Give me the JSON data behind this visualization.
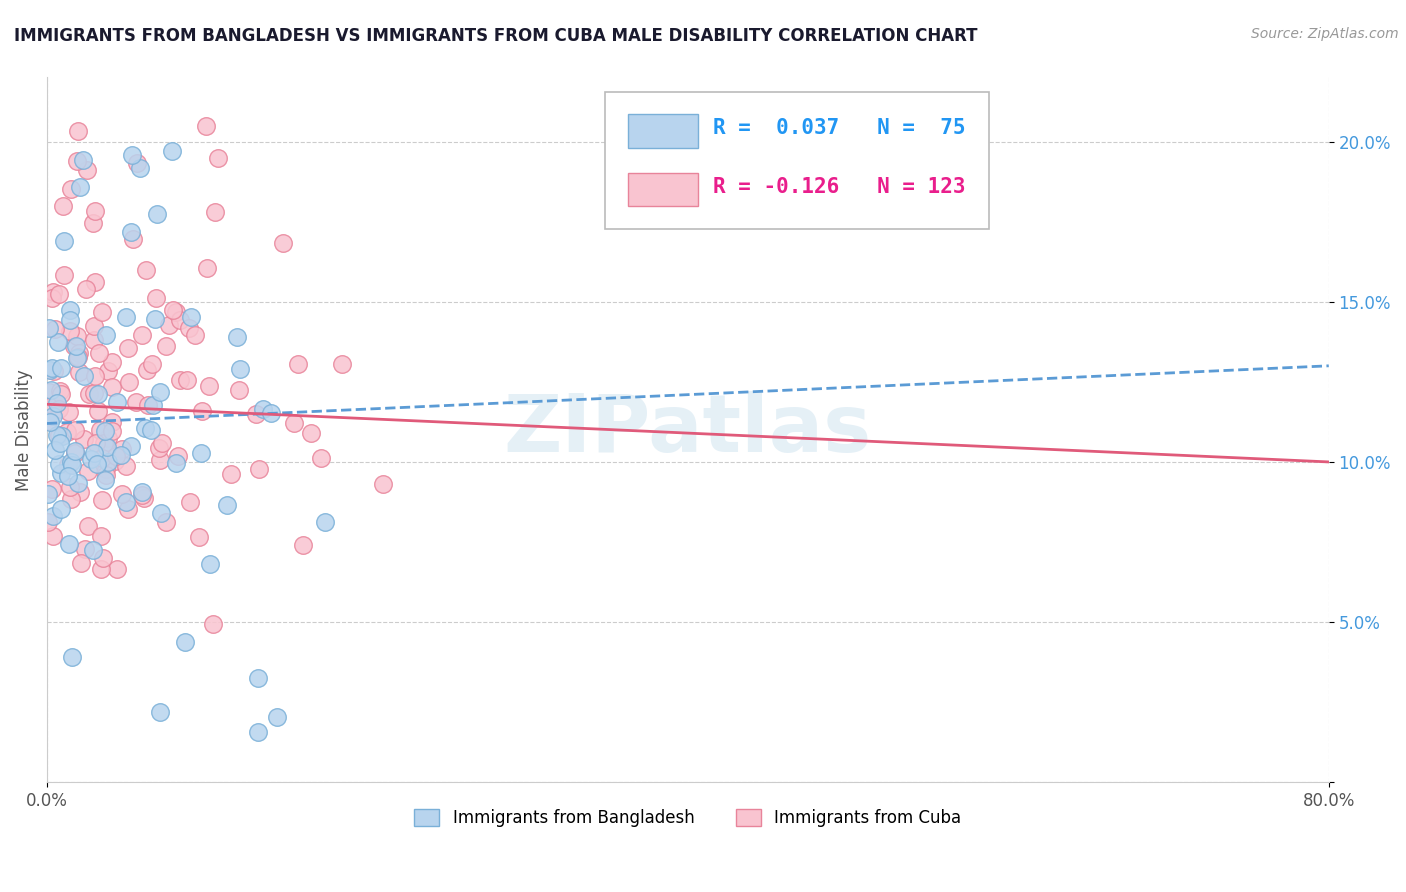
{
  "title": "IMMIGRANTS FROM BANGLADESH VS IMMIGRANTS FROM CUBA MALE DISABILITY CORRELATION CHART",
  "source": "Source: ZipAtlas.com",
  "ylabel": "Male Disability",
  "xlim": [
    0.0,
    80.0
  ],
  "ylim": [
    0.0,
    22.0
  ],
  "ytick_values": [
    0,
    5,
    10,
    15,
    20
  ],
  "ytick_labels": [
    "",
    "5.0%",
    "10.0%",
    "15.0%",
    "20.0%"
  ],
  "xtick_values": [
    0,
    80
  ],
  "xtick_labels": [
    "0.0%",
    "80.0%"
  ],
  "series1_label": "Immigrants from Bangladesh",
  "series1_color": "#b8d4ee",
  "series1_edge_color": "#7ab0d8",
  "series1_R": 0.037,
  "series1_N": 75,
  "series2_label": "Immigrants from Cuba",
  "series2_color": "#f9c4d0",
  "series2_edge_color": "#e8849a",
  "series2_R": -0.126,
  "series2_N": 123,
  "trend1_color": "#5b9bd5",
  "trend1_style": "--",
  "trend2_color": "#e05a7a",
  "trend2_style": "-",
  "grid_color": "#cccccc",
  "watermark_color": "#d0e4f0",
  "watermark_text": "ZIPatlas",
  "legend_R1_color": "#2196F3",
  "legend_R2_color": "#e91e8c",
  "trend1_y0": 11.2,
  "trend1_y1": 13.0,
  "trend2_y0": 11.8,
  "trend2_y1": 10.0
}
